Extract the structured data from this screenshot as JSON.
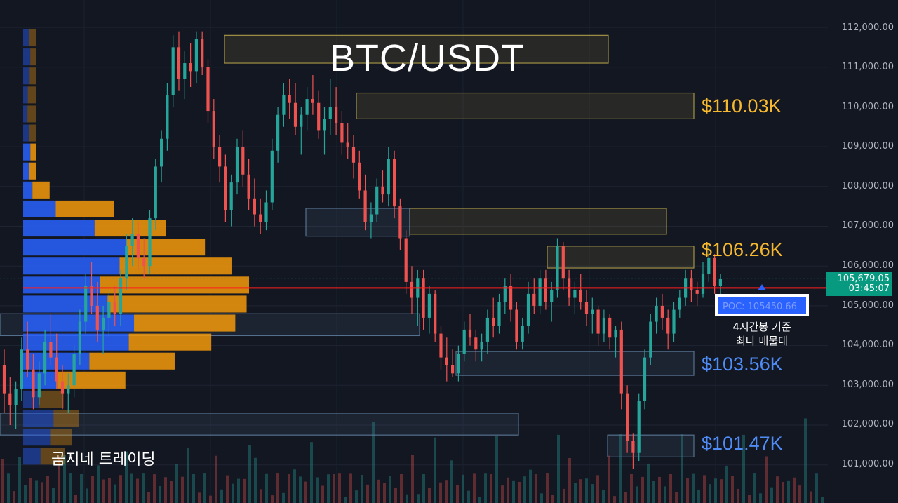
{
  "title": "BTC/USDT",
  "watermark": "곰지네 트레이딩",
  "price_axis": {
    "ticks": [
      "112,000.00",
      "111,000.00",
      "110,000.00",
      "109,000.00",
      "108,000.00",
      "107,000.00",
      "106,000.00",
      "105,000.00",
      "104,000.00",
      "103,000.00",
      "102,000.00",
      "101,000.00"
    ],
    "tick_values": [
      112000,
      111000,
      110000,
      109000,
      108000,
      107000,
      106000,
      105000,
      104000,
      103000,
      102000,
      101000
    ]
  },
  "current_price": {
    "value": "105,679.05",
    "countdown": "03:45:07",
    "price": 105679.05
  },
  "poc": {
    "label": "POC: 105450.66",
    "price": 105450.66,
    "caption_line1": "4시간봉 기준",
    "caption_line2": "최다 매물대"
  },
  "zone_labels": [
    {
      "text": "$110.03K",
      "color": "#f5b82e",
      "price": 110030
    },
    {
      "text": "$106.26K",
      "color": "#f5b82e",
      "price": 106260
    },
    {
      "text": "$103.56K",
      "color": "#4f8cf7",
      "price": 103560
    },
    {
      "text": "$101.47K",
      "color": "#4f8cf7",
      "price": 101470
    }
  ],
  "colors": {
    "background": "#131722",
    "up_candle": "#26a69a",
    "down_candle": "#ef5350",
    "poc_line": "#ff1e1e",
    "supply_zone": "#b8a64a",
    "demand_zone": "#5f7fa0",
    "profile_buy": "#2962ff",
    "profile_sell": "#f59a0b",
    "price_tag": "#089981"
  },
  "chart_data": {
    "type": "candlestick",
    "timeframe": "4h",
    "symbol": "BTC/USDT",
    "ylim": [
      100400,
      112300
    ],
    "candles": [
      [
        103500,
        103900,
        102300,
        102800
      ],
      [
        102800,
        103200,
        102000,
        102500
      ],
      [
        102500,
        103100,
        101900,
        102900
      ],
      [
        102900,
        104200,
        102600,
        103900
      ],
      [
        103900,
        104600,
        103200,
        103400
      ],
      [
        103400,
        103800,
        102400,
        102700
      ],
      [
        102700,
        103600,
        102500,
        103300
      ],
      [
        103300,
        104400,
        103000,
        104100
      ],
      [
        104100,
        104800,
        103500,
        103700
      ],
      [
        103700,
        104300,
        102900,
        103100
      ],
      [
        103100,
        103500,
        102400,
        102800
      ],
      [
        102800,
        103300,
        102300,
        103000
      ],
      [
        103000,
        104000,
        102700,
        103800
      ],
      [
        103800,
        104900,
        103500,
        104600
      ],
      [
        104600,
        105800,
        104300,
        105500
      ],
      [
        105500,
        106100,
        104800,
        105000
      ],
      [
        105000,
        105600,
        104100,
        104400
      ],
      [
        104400,
        105000,
        103800,
        104700
      ],
      [
        104700,
        105400,
        104200,
        105100
      ],
      [
        105100,
        105500,
        104500,
        104800
      ],
      [
        104800,
        105900,
        104500,
        105700
      ],
      [
        105700,
        106800,
        105400,
        106500
      ],
      [
        106500,
        107200,
        106000,
        106800
      ],
      [
        106800,
        107100,
        105900,
        106200
      ],
      [
        106200,
        106700,
        105700,
        106000
      ],
      [
        106000,
        107400,
        105800,
        107200
      ],
      [
        107200,
        108700,
        106900,
        108500
      ],
      [
        108500,
        109400,
        108100,
        109200
      ],
      [
        109200,
        110600,
        108900,
        110300
      ],
      [
        110300,
        111800,
        110000,
        111500
      ],
      [
        111500,
        111900,
        110400,
        110700
      ],
      [
        110700,
        111400,
        110200,
        111100
      ],
      [
        111100,
        111600,
        110500,
        110900
      ],
      [
        110900,
        111900,
        110600,
        111700
      ],
      [
        111700,
        111900,
        110800,
        111000
      ],
      [
        111000,
        111200,
        109600,
        109900
      ],
      [
        109900,
        110200,
        108700,
        109000
      ],
      [
        109000,
        109300,
        108100,
        108500
      ],
      [
        108500,
        108800,
        107100,
        107400
      ],
      [
        107400,
        108300,
        107000,
        108100
      ],
      [
        108100,
        109200,
        107800,
        109000
      ],
      [
        109000,
        109400,
        108000,
        108300
      ],
      [
        108300,
        108700,
        107400,
        107700
      ],
      [
        107700,
        108200,
        107000,
        107300
      ],
      [
        107300,
        107700,
        106800,
        107100
      ],
      [
        107100,
        107900,
        106900,
        107600
      ],
      [
        107600,
        109200,
        107400,
        108900
      ],
      [
        108900,
        110000,
        108600,
        109800
      ],
      [
        109800,
        110600,
        109500,
        110300
      ],
      [
        110300,
        110700,
        109700,
        110100
      ],
      [
        110100,
        110600,
        109300,
        109500
      ],
      [
        109500,
        110000,
        108800,
        109800
      ],
      [
        109800,
        110500,
        109400,
        110200
      ],
      [
        110200,
        110800,
        109800,
        110100
      ],
      [
        110100,
        110400,
        109200,
        109400
      ],
      [
        109400,
        110000,
        108800,
        109700
      ],
      [
        109700,
        110700,
        109300,
        110000
      ],
      [
        110000,
        110500,
        109300,
        109600
      ],
      [
        109600,
        109900,
        108800,
        109100
      ],
      [
        109100,
        109600,
        108700,
        109000
      ],
      [
        109000,
        109300,
        108200,
        108600
      ],
      [
        108600,
        108900,
        107700,
        107900
      ],
      [
        107900,
        108300,
        106900,
        107100
      ],
      [
        107100,
        107600,
        106700,
        107300
      ],
      [
        107300,
        108200,
        107100,
        108000
      ],
      [
        108000,
        108400,
        107600,
        107800
      ],
      [
        107800,
        109000,
        107500,
        108700
      ],
      [
        108700,
        108900,
        107200,
        107500
      ],
      [
        107500,
        107700,
        106400,
        106700
      ],
      [
        106700,
        106900,
        105300,
        105600
      ],
      [
        105600,
        106000,
        104800,
        105200
      ],
      [
        105200,
        105900,
        104500,
        105700
      ],
      [
        105700,
        105900,
        104400,
        104700
      ],
      [
        104700,
        105500,
        104300,
        105300
      ],
      [
        105300,
        105400,
        104100,
        104300
      ],
      [
        104300,
        104500,
        103400,
        103700
      ],
      [
        103700,
        104200,
        103100,
        103500
      ],
      [
        103500,
        103900,
        103200,
        103300
      ],
      [
        103300,
        104000,
        103100,
        103800
      ],
      [
        103800,
        104600,
        103600,
        104400
      ],
      [
        104400,
        104800,
        104000,
        104200
      ],
      [
        104200,
        104400,
        103600,
        103900
      ],
      [
        103900,
        104300,
        103600,
        104100
      ],
      [
        104100,
        104900,
        103800,
        104700
      ],
      [
        104700,
        105200,
        104200,
        104500
      ],
      [
        104500,
        105300,
        104300,
        105100
      ],
      [
        105100,
        105700,
        104800,
        105500
      ],
      [
        105500,
        105800,
        104600,
        104900
      ],
      [
        104900,
        105100,
        103900,
        104100
      ],
      [
        104100,
        104700,
        103900,
        104500
      ],
      [
        104500,
        105600,
        104300,
        105300
      ],
      [
        105300,
        105700,
        104800,
        105000
      ],
      [
        105000,
        105900,
        104800,
        105700
      ],
      [
        105700,
        105900,
        104900,
        105100
      ],
      [
        105100,
        105600,
        104600,
        105400
      ],
      [
        105400,
        106700,
        105200,
        106500
      ],
      [
        106500,
        106600,
        105400,
        105700
      ],
      [
        105700,
        105900,
        105000,
        105200
      ],
      [
        105200,
        105600,
        104800,
        105400
      ],
      [
        105400,
        105800,
        104900,
        105100
      ],
      [
        105100,
        105400,
        104500,
        104800
      ],
      [
        104800,
        105200,
        104300,
        104900
      ],
      [
        104900,
        105000,
        104000,
        104300
      ],
      [
        104300,
        104900,
        104100,
        104700
      ],
      [
        104700,
        104800,
        103900,
        104200
      ],
      [
        104200,
        104500,
        103700,
        104400
      ],
      [
        104400,
        104600,
        102400,
        102800
      ],
      [
        102800,
        103000,
        101300,
        101600
      ],
      [
        101600,
        101800,
        100900,
        101300
      ],
      [
        101300,
        102800,
        101100,
        102600
      ],
      [
        102600,
        103900,
        102400,
        103700
      ],
      [
        103700,
        104800,
        103500,
        104600
      ],
      [
        104600,
        105200,
        104300,
        105000
      ],
      [
        105000,
        105300,
        104400,
        104700
      ],
      [
        104700,
        104900,
        103900,
        104300
      ],
      [
        104300,
        105100,
        104100,
        104900
      ],
      [
        104900,
        105400,
        104700,
        105200
      ],
      [
        105200,
        105900,
        105000,
        105700
      ],
      [
        105700,
        105900,
        105100,
        105400
      ],
      [
        105400,
        105600,
        105000,
        105300
      ],
      [
        105300,
        106100,
        105200,
        105800
      ],
      [
        105800,
        106500,
        105600,
        106200
      ],
      [
        106200,
        106300,
        105300,
        105500
      ],
      [
        105500,
        105800,
        105200,
        105680
      ]
    ]
  }
}
